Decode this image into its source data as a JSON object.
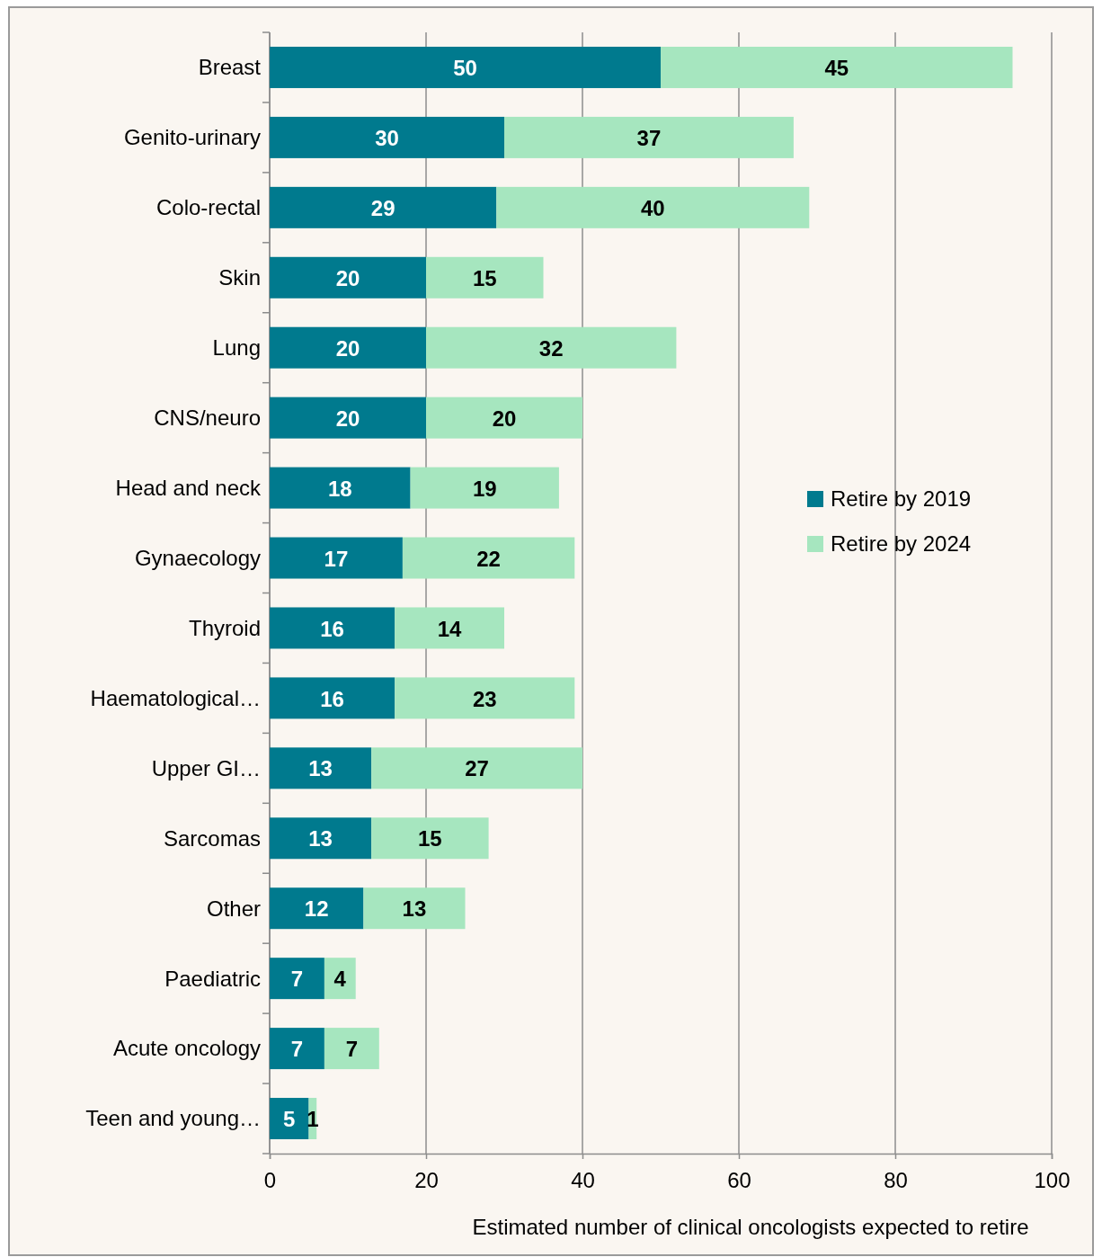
{
  "chart_data": {
    "type": "bar",
    "orientation": "horizontal",
    "stacked": true,
    "xlabel": "Estimated number of clinical oncologists expected to retire",
    "categories": [
      "Breast",
      "Genito-urinary",
      "Colo-rectal",
      "Skin",
      "Lung",
      "CNS/neuro",
      "Head and neck",
      "Gynaecology",
      "Thyroid",
      "Haematological…",
      "Upper GI…",
      "Sarcomas",
      "Other",
      "Paediatric",
      "Acute oncology",
      "Teen and young…"
    ],
    "series": [
      {
        "name": "Retire by 2019",
        "color": "#007a8e",
        "values": [
          50,
          30,
          29,
          20,
          20,
          20,
          18,
          17,
          16,
          16,
          13,
          13,
          12,
          7,
          7,
          5
        ]
      },
      {
        "name": "Retire by 2024",
        "color": "#a6e6bf",
        "values": [
          45,
          37,
          40,
          15,
          32,
          20,
          19,
          22,
          14,
          23,
          27,
          15,
          13,
          4,
          7,
          1
        ]
      }
    ],
    "xlim": [
      0,
      100
    ],
    "xticks": [
      0,
      20,
      40,
      60,
      80,
      100
    ],
    "grid": "x",
    "legend": "right",
    "data_labels": true
  }
}
